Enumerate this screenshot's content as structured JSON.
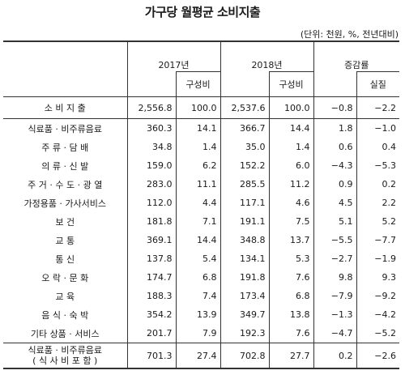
{
  "title": "가구당 월평균 소비지출",
  "unit": "(단위: 천원, %, 전년대비)",
  "headers": {
    "y2017": "2017년",
    "y2018": "2018년",
    "change": "증감률",
    "share": "구성비",
    "real": "실질"
  },
  "rows": [
    {
      "cat": "소 비 지 출",
      "v2017": "2,556.8",
      "s2017": "100.0",
      "v2018": "2,537.6",
      "s2018": "100.0",
      "chg": "−0.8",
      "real": "−2.2"
    },
    {
      "cat": "식료품 · 비주류음료",
      "v2017": "360.3",
      "s2017": "14.1",
      "v2018": "366.7",
      "s2018": "14.4",
      "chg": "1.8",
      "real": "−1.0"
    },
    {
      "cat": "주  류 · 담  배",
      "v2017": "34.8",
      "s2017": "1.4",
      "v2018": "35.0",
      "s2018": "1.4",
      "chg": "0.6",
      "real": "0.4"
    },
    {
      "cat": "의  류 · 신  발",
      "v2017": "159.0",
      "s2017": "6.2",
      "v2018": "152.2",
      "s2018": "6.0",
      "chg": "−4.3",
      "real": "−5.3"
    },
    {
      "cat": "주 거 · 수 도 · 광 열",
      "v2017": "283.0",
      "s2017": "11.1",
      "v2018": "285.5",
      "s2018": "11.2",
      "chg": "0.9",
      "real": "0.2"
    },
    {
      "cat": "가정용품 · 가사서비스",
      "v2017": "112.0",
      "s2017": "4.4",
      "v2018": "117.1",
      "s2018": "4.6",
      "chg": "4.5",
      "real": "2.2"
    },
    {
      "cat": "보         건",
      "v2017": "181.8",
      "s2017": "7.1",
      "v2018": "191.1",
      "s2018": "7.5",
      "chg": "5.1",
      "real": "5.2"
    },
    {
      "cat": "교         통",
      "v2017": "369.1",
      "s2017": "14.4",
      "v2018": "348.8",
      "s2018": "13.7",
      "chg": "−5.5",
      "real": "−7.7"
    },
    {
      "cat": "통         신",
      "v2017": "137.8",
      "s2017": "5.4",
      "v2018": "134.1",
      "s2018": "5.3",
      "chg": "−2.7",
      "real": "−1.9"
    },
    {
      "cat": "오 락 · 문 화",
      "v2017": "174.7",
      "s2017": "6.8",
      "v2018": "191.8",
      "s2018": "7.6",
      "chg": "9.8",
      "real": "9.3"
    },
    {
      "cat": "교         육",
      "v2017": "188.3",
      "s2017": "7.4",
      "v2018": "173.4",
      "s2018": "6.8",
      "chg": "−7.9",
      "real": "−9.2"
    },
    {
      "cat": "음 식 · 숙 박",
      "v2017": "354.2",
      "s2017": "13.9",
      "v2018": "349.7",
      "s2018": "13.8",
      "chg": "−1.3",
      "real": "−4.2"
    },
    {
      "cat": "기타 상품 · 서비스",
      "v2017": "201.7",
      "s2017": "7.9",
      "v2018": "192.3",
      "s2018": "7.6",
      "chg": "−4.7",
      "real": "−5.2"
    }
  ],
  "food_total": {
    "cat1": "식료품 · 비주류음료",
    "cat2": "( 식 사 비  포 함 )",
    "v2017": "701.3",
    "s2017": "27.4",
    "v2018": "702.8",
    "s2018": "27.7",
    "chg": "0.2",
    "real": "−2.6"
  }
}
